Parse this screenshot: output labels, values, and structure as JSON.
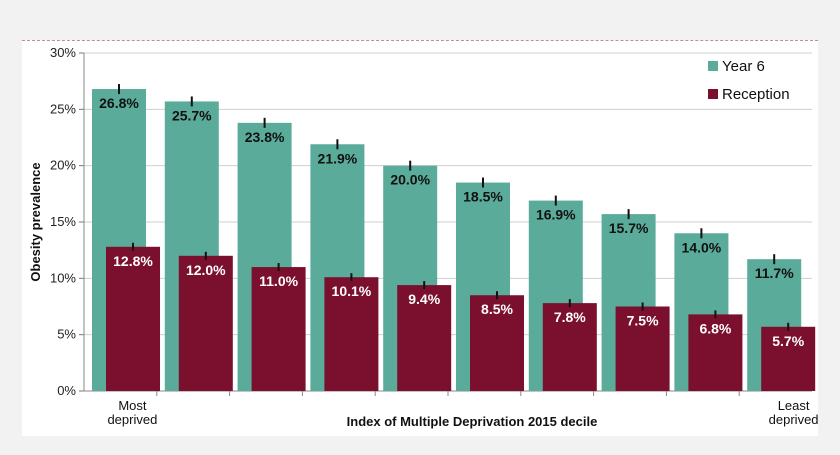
{
  "chart_data": {
    "type": "bar",
    "categories": [
      "1",
      "2",
      "3",
      "4",
      "5",
      "6",
      "7",
      "8",
      "9",
      "10"
    ],
    "series": [
      {
        "name": "Year 6",
        "color": "#5aab99",
        "values": [
          26.8,
          25.7,
          23.8,
          21.9,
          20.0,
          18.5,
          16.9,
          15.7,
          14.0,
          11.7
        ],
        "labels": [
          "26.8%",
          "25.7%",
          "23.8%",
          "21.9%",
          "20.0%",
          "18.5%",
          "16.9%",
          "15.7%",
          "14.0%",
          "11.7%"
        ],
        "label_color": "#111111"
      },
      {
        "name": "Reception",
        "color": "#7b0f2e",
        "values": [
          12.8,
          12.0,
          11.0,
          10.1,
          9.4,
          8.5,
          7.8,
          7.5,
          6.8,
          5.7
        ],
        "labels": [
          "12.8%",
          "12.0%",
          "11.0%",
          "10.1%",
          "9.4%",
          "8.5%",
          "7.8%",
          "7.5%",
          "6.8%",
          "5.7%"
        ],
        "label_color": "#ffffff"
      }
    ],
    "ylabel": "Obesity prevalence",
    "xlabel": "Index of Multiple Deprivation 2015 decile",
    "x_end_labels": {
      "first": [
        "Most",
        "deprived"
      ],
      "last": [
        "Least",
        "deprived"
      ]
    },
    "ylim": [
      0,
      30
    ],
    "yticks": [
      "0%",
      "5%",
      "10%",
      "15%",
      "20%",
      "25%",
      "30%"
    ],
    "ytick_values": [
      0,
      5,
      10,
      15,
      20,
      25,
      30
    ],
    "grid": true,
    "legend_position": "top-right",
    "error_bars": true
  }
}
